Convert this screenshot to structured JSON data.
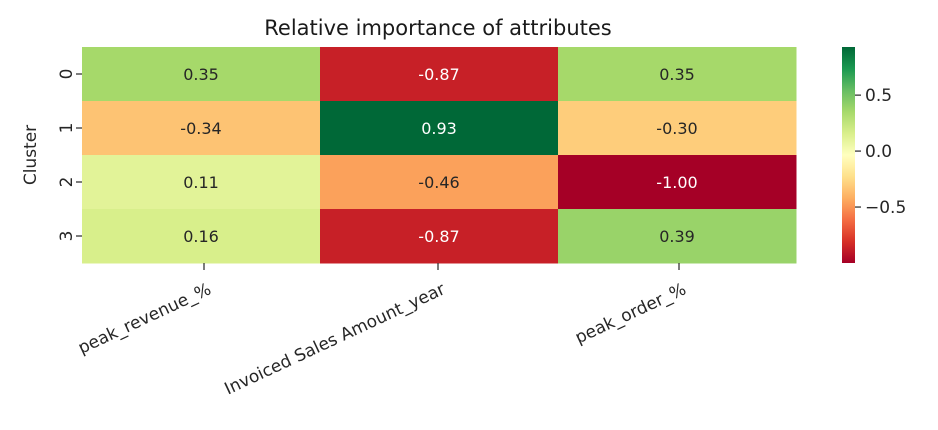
{
  "chart_data": {
    "type": "heatmap",
    "title": "Relative importance of attributes",
    "ylabel": "Cluster",
    "xlabel": "",
    "x_categories": [
      "peak_revenue_%",
      "Invoiced Sales Amount_year",
      "peak_order_%"
    ],
    "y_categories": [
      "0",
      "1",
      "2",
      "3"
    ],
    "values": [
      [
        0.35,
        -0.87,
        0.35
      ],
      [
        -0.34,
        0.93,
        -0.3
      ],
      [
        0.11,
        -0.46,
        -1.0
      ],
      [
        0.16,
        -0.87,
        0.39
      ]
    ],
    "value_labels": [
      [
        "0.35",
        "-0.87",
        "0.35"
      ],
      [
        "-0.34",
        "0.93",
        "-0.30"
      ],
      [
        "0.11",
        "-0.46",
        "-1.00"
      ],
      [
        "0.16",
        "-0.87",
        "0.39"
      ]
    ],
    "colormap": "RdYlGn",
    "vmin": -1.0,
    "vmax": 0.93,
    "colorbar_ticks": [
      0.5,
      0.0,
      -0.5
    ],
    "colorbar_tick_labels": [
      "0.5",
      "0.0",
      "−0.5"
    ],
    "x_tick_rotation": -25
  }
}
